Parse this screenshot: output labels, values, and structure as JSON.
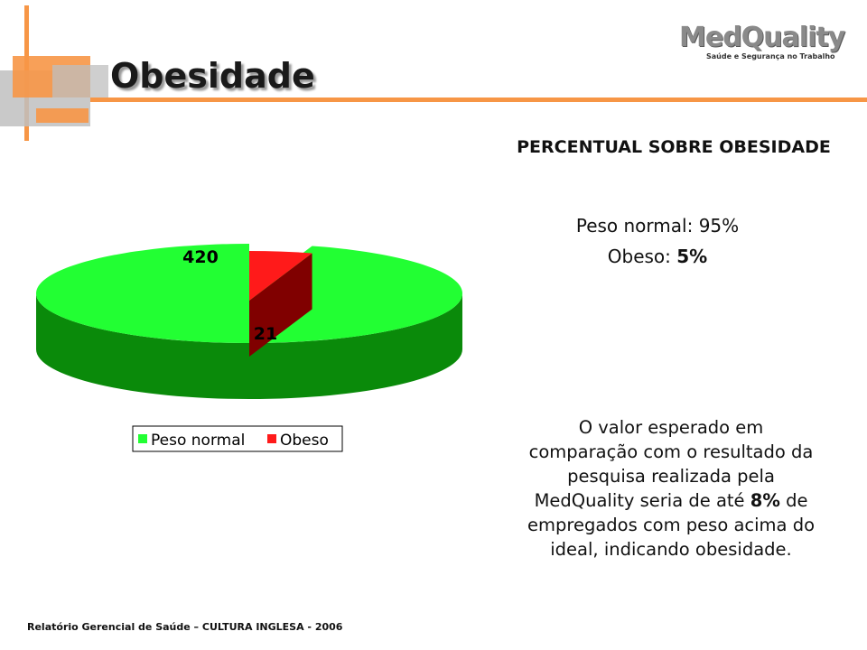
{
  "slide": {
    "title": "Obesidade",
    "footer": "Relatório Gerencial de Saúde – CULTURA INGLESA - 2006"
  },
  "logo": {
    "wordmark": "MedQuality",
    "tagline": "Saúde e Segurança no Trabalho"
  },
  "colors": {
    "accent_orange": "#f79646",
    "grey_block": "#bfbfbf",
    "normal_top": "#22ff33",
    "normal_side": "#0a8a0a",
    "obese_top": "#ff1a1a",
    "obese_side": "#800000"
  },
  "chart_data": {
    "type": "pie",
    "categories": [
      "Peso normal",
      "Obeso"
    ],
    "values": [
      420,
      21
    ],
    "data_labels": [
      "420",
      "21"
    ],
    "legend": {
      "placement": "bottom",
      "entries": [
        "Peso normal",
        "Obeso"
      ]
    },
    "three_d": true
  },
  "panel": {
    "heading": "PERCENTUAL SOBRE OBESIDADE",
    "normal_label": "Peso normal:",
    "normal_value": "95%",
    "obese_label": "Obeso:",
    "obese_value": "5%"
  },
  "note": {
    "part1": "O valor esperado em comparação com o resultado da pesquisa realizada pela MedQuality seria de até",
    "highlight": "8%",
    "part2": "de empregados com peso acima do ideal, indicando obesidade."
  }
}
